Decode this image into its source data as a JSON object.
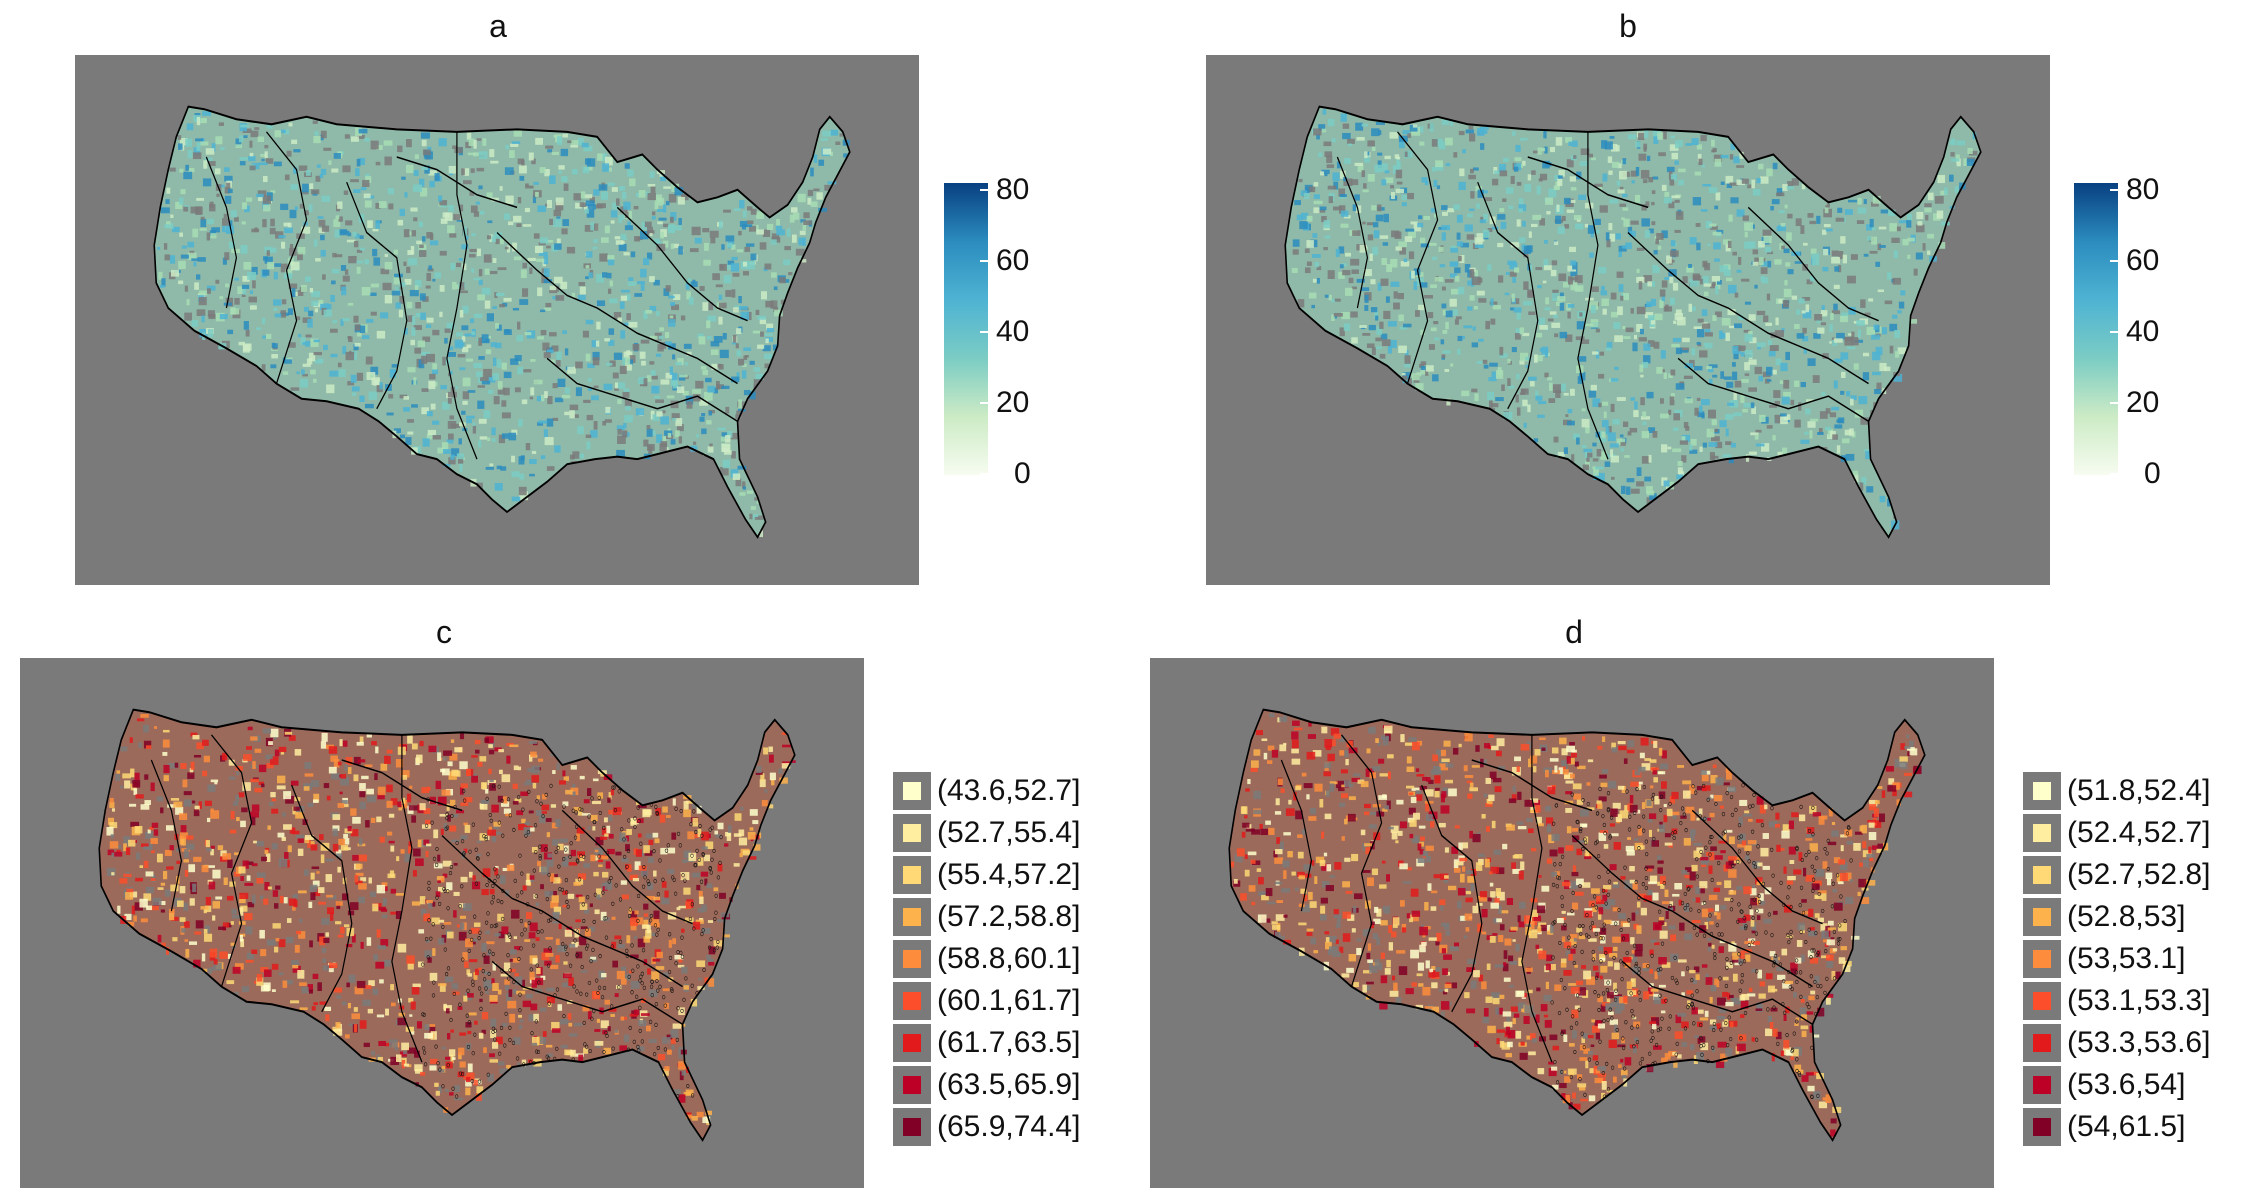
{
  "panels": [
    {
      "id": "a",
      "title": "a",
      "palette": "blues",
      "legend_type": "colorbar",
      "colorbar": {
        "min": 0,
        "max": 80,
        "ticks": [
          "80",
          "60",
          "40",
          "20",
          "0"
        ]
      }
    },
    {
      "id": "b",
      "title": "b",
      "palette": "blues",
      "legend_type": "colorbar",
      "colorbar": {
        "min": 0,
        "max": 80,
        "ticks": [
          "80",
          "60",
          "40",
          "20",
          "0"
        ]
      }
    },
    {
      "id": "c",
      "title": "c",
      "palette": "reds",
      "legend_type": "categorical",
      "classes": [
        {
          "label": "(43.6,52.7]",
          "color": "#ffffcc"
        },
        {
          "label": "(52.7,55.4]",
          "color": "#ffeda0"
        },
        {
          "label": "(55.4,57.2]",
          "color": "#fed976"
        },
        {
          "label": "(57.2,58.8]",
          "color": "#feb24c"
        },
        {
          "label": "(58.8,60.1]",
          "color": "#fd8d3c"
        },
        {
          "label": "(60.1,61.7]",
          "color": "#fc4e2a"
        },
        {
          "label": "(61.7,63.5]",
          "color": "#e31a1c"
        },
        {
          "label": "(63.5,65.9]",
          "color": "#bd0026"
        },
        {
          "label": "(65.9,74.4]",
          "color": "#800026"
        }
      ]
    },
    {
      "id": "d",
      "title": "d",
      "palette": "reds",
      "legend_type": "categorical",
      "classes": [
        {
          "label": "(51.8,52.4]",
          "color": "#ffffcc"
        },
        {
          "label": "(52.4,52.7]",
          "color": "#ffeda0"
        },
        {
          "label": "(52.7,52.8]",
          "color": "#fed976"
        },
        {
          "label": "(52.8,53]",
          "color": "#feb24c"
        },
        {
          "label": "(53,53.1]",
          "color": "#fd8d3c"
        },
        {
          "label": "(53.1,53.3]",
          "color": "#fc4e2a"
        },
        {
          "label": "(53.3,53.6]",
          "color": "#e31a1c"
        },
        {
          "label": "(53.6,54]",
          "color": "#bd0026"
        },
        {
          "label": "(54,61.5]",
          "color": "#800026"
        }
      ]
    }
  ],
  "colors": {
    "map_background": "#7a7a7a",
    "blues_gradient": [
      "#f7fcf0",
      "#ccebc5",
      "#7bccc4",
      "#4eb3d3",
      "#2b8cbe",
      "#084081"
    ],
    "boundary": "#000000"
  }
}
